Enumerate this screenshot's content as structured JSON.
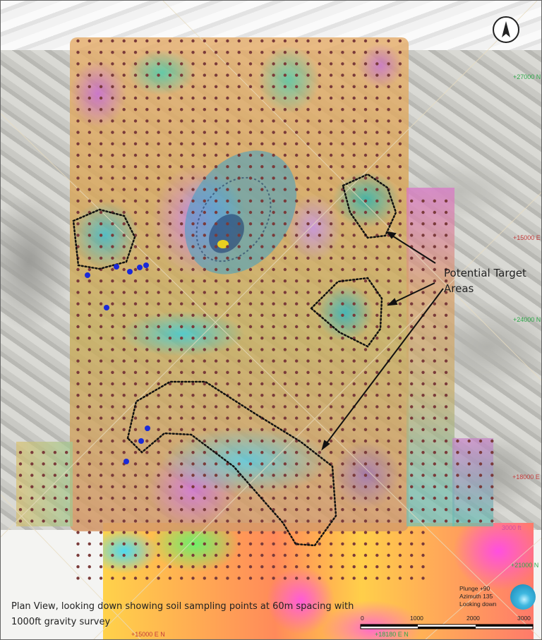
{
  "map": {
    "caption_line1": "Plan View, looking down showing soil sampling points at 60m spacing with",
    "caption_line2": "1000ft gravity survey",
    "annotation": {
      "line1": "Potential Target",
      "line2": "Areas"
    },
    "view_info": {
      "plunge": "Plunge +90",
      "azimuth": "Azimuth 135",
      "looking": "Looking down"
    },
    "north_arrow": "N",
    "grid_labels": [
      {
        "text": "+27000 N",
        "type": "northing"
      },
      {
        "text": "+15000 E",
        "type": "easting"
      },
      {
        "text": "+24000 N",
        "type": "northing"
      },
      {
        "text": "+18000 E",
        "type": "easting"
      },
      {
        "text": "3000 ft",
        "type": "distance"
      },
      {
        "text": "+21000 N",
        "type": "northing"
      },
      {
        "text": "+18180 E N",
        "type": "overlap"
      },
      {
        "text": "+15000 E N",
        "type": "overlap"
      }
    ],
    "scale_bar": {
      "ticks": [
        "0",
        "1000",
        "2000",
        "3000"
      ]
    },
    "colors": {
      "sample_point": "#7a3a3a",
      "highlight_point": "#1a2ad8",
      "northing_label": "#2fa84a",
      "easting_label": "#c23a3a",
      "target_outline": "#111111"
    }
  }
}
